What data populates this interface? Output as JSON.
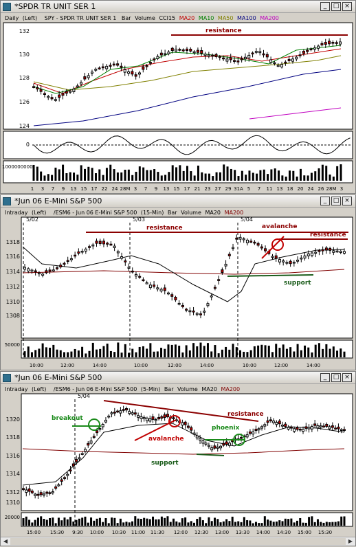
{
  "windows": [
    {
      "title": "*SPDR TR UNIT SER 1",
      "header": [
        "Daily",
        "(Left)",
        "SPY - SPDR TR UNIT SER 1",
        "Bar",
        "Volume",
        "CCI15",
        "MA20",
        "MA10",
        "MA50",
        "MA100",
        "MA200"
      ],
      "header_colors": [
        "#000000",
        "#000000",
        "#000000",
        "#000000",
        "#000000",
        "#000000",
        "#c00000",
        "#008000",
        "#808000",
        "#000080",
        "#c000c0"
      ],
      "y_ticks": [
        "132",
        "130",
        "128",
        "126",
        "124"
      ],
      "cci_tick": "0",
      "vol_tick": "1000000000",
      "x_ticks": [
        "1",
        "3",
        "7",
        "9",
        "13",
        "15",
        "17",
        "22",
        "24",
        "28M",
        "3",
        "7",
        "9",
        "13",
        "15",
        "17",
        "21",
        "23",
        "27",
        "29",
        "31A",
        "5",
        "7",
        "11",
        "13",
        "18",
        "20",
        "24",
        "26",
        "28M",
        "3"
      ],
      "annotations": [
        "resistance"
      ]
    },
    {
      "title": "*Jun 06  E-Mini S&P 500",
      "header": [
        "Intraday",
        "(Left)",
        "/ESM6 - Jun 06  E-Mini S&P 500",
        "(15-Min)",
        "Bar",
        "Volume",
        "MA20",
        "MA200"
      ],
      "header_colors": [
        "#000000",
        "#000000",
        "#000000",
        "#000000",
        "#000000",
        "#000000",
        "#000000",
        "#800000"
      ],
      "date_marks": [
        "5/02",
        "5/03",
        "5/04"
      ],
      "y_ticks": [
        "1318",
        "1316",
        "1314",
        "1312",
        "1310",
        "1308"
      ],
      "vol_tick": "50000",
      "x_ticks": [
        "10:00",
        "12:00",
        "14:00",
        "10:00",
        "12:00",
        "14:00",
        "10:00",
        "12:00",
        "14:00"
      ],
      "annotations": [
        "resistance",
        "avalanche",
        "resistance",
        "support"
      ]
    },
    {
      "title": "*Jun 06  E-Mini S&P 500",
      "header": [
        "Intraday",
        "(Left)",
        "/ESM6 - Jun 06  E-Mini S&P 500",
        "(5-Min)",
        "Bar",
        "Volume",
        "MA20",
        "MA200"
      ],
      "header_colors": [
        "#000000",
        "#000000",
        "#000000",
        "#000000",
        "#000000",
        "#000000",
        "#000000",
        "#800000"
      ],
      "date_marks": [
        "5/04"
      ],
      "y_ticks": [
        "1320",
        "1318",
        "1316",
        "1314",
        "1312",
        "1310"
      ],
      "vol_tick": "20000",
      "x_ticks": [
        "15:00",
        "15:30",
        "9:30",
        "10:00",
        "10:30",
        "11:00",
        "11:30",
        "12:00",
        "12:30",
        "13:00",
        "13:30",
        "14:00",
        "14:30",
        "15:00",
        "15:30"
      ],
      "annotations": [
        "breakout",
        "avalanche",
        "resistance",
        "phoenix",
        "support"
      ]
    }
  ],
  "colors": {
    "resistance": "#8b0000",
    "support": "#1a5c1a",
    "breakout": "#1a8a1a",
    "avalanche": "#c00000",
    "ma20": "#000000",
    "ma200": "#800000"
  }
}
